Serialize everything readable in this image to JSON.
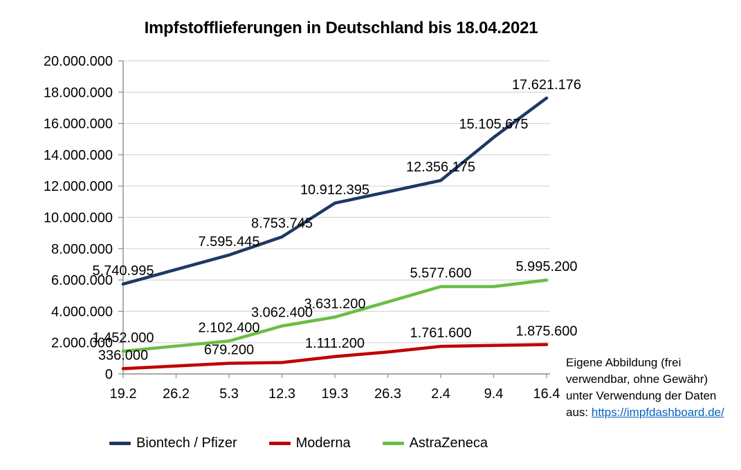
{
  "chart_data": {
    "type": "line",
    "title": "Impfstofflieferungen in Deutschland bis 18.04.2021",
    "categories": [
      "19.2",
      "26.2",
      "5.3",
      "12.3",
      "19.3",
      "26.3",
      "2.4",
      "9.4",
      "16.4"
    ],
    "ylim": [
      0,
      20000000
    ],
    "ytick_step": 2000000,
    "ytick_labels": [
      "0",
      "2.000.000",
      "4.000.000",
      "6.000.000",
      "8.000.000",
      "10.000.000",
      "12.000.000",
      "14.000.000",
      "16.000.000",
      "18.000.000",
      "20.000.000"
    ],
    "grid": "horizontal",
    "legend_position": "bottom",
    "colors": {
      "grid": "#d6d6d6",
      "axis": "#8c8c8c",
      "label_text": "#000000"
    },
    "series": [
      {
        "name": "Biontech / Pfizer",
        "color": "#1f3864",
        "values": [
          5740995,
          6670000,
          7595445,
          8753745,
          10912395,
          11630000,
          12356175,
          15105675,
          17621176
        ],
        "point_labels": [
          "5.740.995",
          null,
          "7.595.445",
          "8.753.745",
          "10.912.395",
          null,
          "12.356.175",
          "15.105.675",
          "17.621.176"
        ]
      },
      {
        "name": "Moderna",
        "color": "#c00000",
        "values": [
          336000,
          510000,
          679200,
          730000,
          1111200,
          1400000,
          1761600,
          1820000,
          1875600
        ],
        "point_labels": [
          "336.000",
          null,
          "679.200",
          null,
          "1.111.200",
          null,
          "1.761.600",
          null,
          "1.875.600"
        ]
      },
      {
        "name": "AstraZeneca",
        "color": "#6abd45",
        "values": [
          1452000,
          1780000,
          2102400,
          3062400,
          3631200,
          4600000,
          5577600,
          5577600,
          5995200
        ],
        "point_labels": [
          "1.452.000",
          null,
          "2.102.400",
          "3.062.400",
          "3.631.200",
          null,
          "5.577.600",
          null,
          "5.995.200"
        ]
      }
    ]
  },
  "annotation": {
    "lines": [
      "Eigene Abbildung (frei",
      "verwendbar, ohne Gewähr)",
      "unter Verwendung der Daten",
      "aus:"
    ],
    "link_text": "https://impfdashboard.de/",
    "link_color": "#0563c1"
  }
}
